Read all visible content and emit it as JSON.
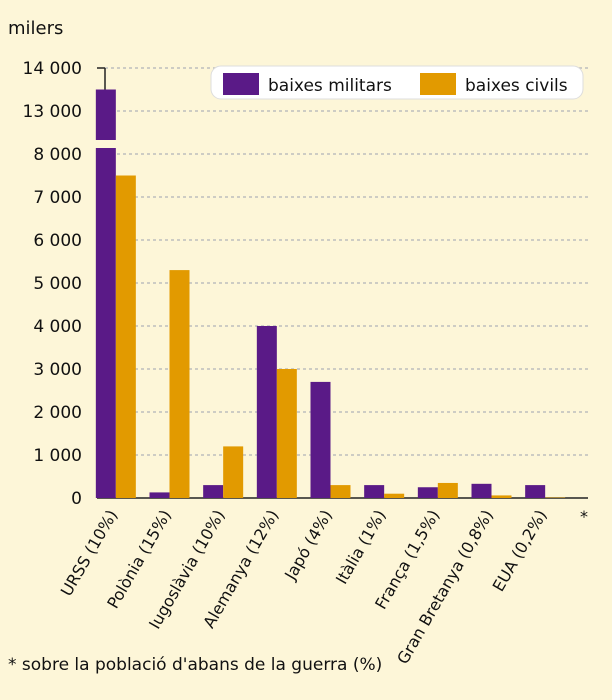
{
  "chart_data": {
    "type": "bar",
    "unit_label": "milers",
    "categories": [
      "URSS (10%)",
      "Polònia (15%)",
      "Iugoslàvia (10%)",
      "Alemanya (12%)",
      "Japó (4%)",
      "Itàlia (1%)",
      "França (1,5%)",
      "Gran Bretanya (0,8%)",
      "EUA (0,2%)"
    ],
    "series": [
      {
        "name": "baixes militars",
        "color": "#5a1a87",
        "values": [
          13500,
          130,
          300,
          4000,
          2700,
          300,
          250,
          330,
          300
        ]
      },
      {
        "name": "baixes civils",
        "color": "#e29a00",
        "values": [
          7500,
          5300,
          1200,
          3000,
          300,
          100,
          350,
          60,
          10
        ]
      }
    ],
    "yticks_lower": [
      0,
      1000,
      2000,
      3000,
      4000,
      5000,
      6000,
      7000,
      8000
    ],
    "yticks_upper": [
      13000,
      14000
    ],
    "ytick_labels": {
      "0": "0",
      "1000": "1 000",
      "2000": "2 000",
      "3000": "3 000",
      "4000": "4 000",
      "5000": "5 000",
      "6000": "6 000",
      "7000": "7 000",
      "8000": "8 000",
      "13000": "13 000",
      "14000": "14 000"
    },
    "axis_break": [
      8000,
      13000
    ],
    "grid": true,
    "legend_position": "top-right",
    "category_marker": "*",
    "footnote": "* sobre la població d'abans de la guerra (%)"
  }
}
